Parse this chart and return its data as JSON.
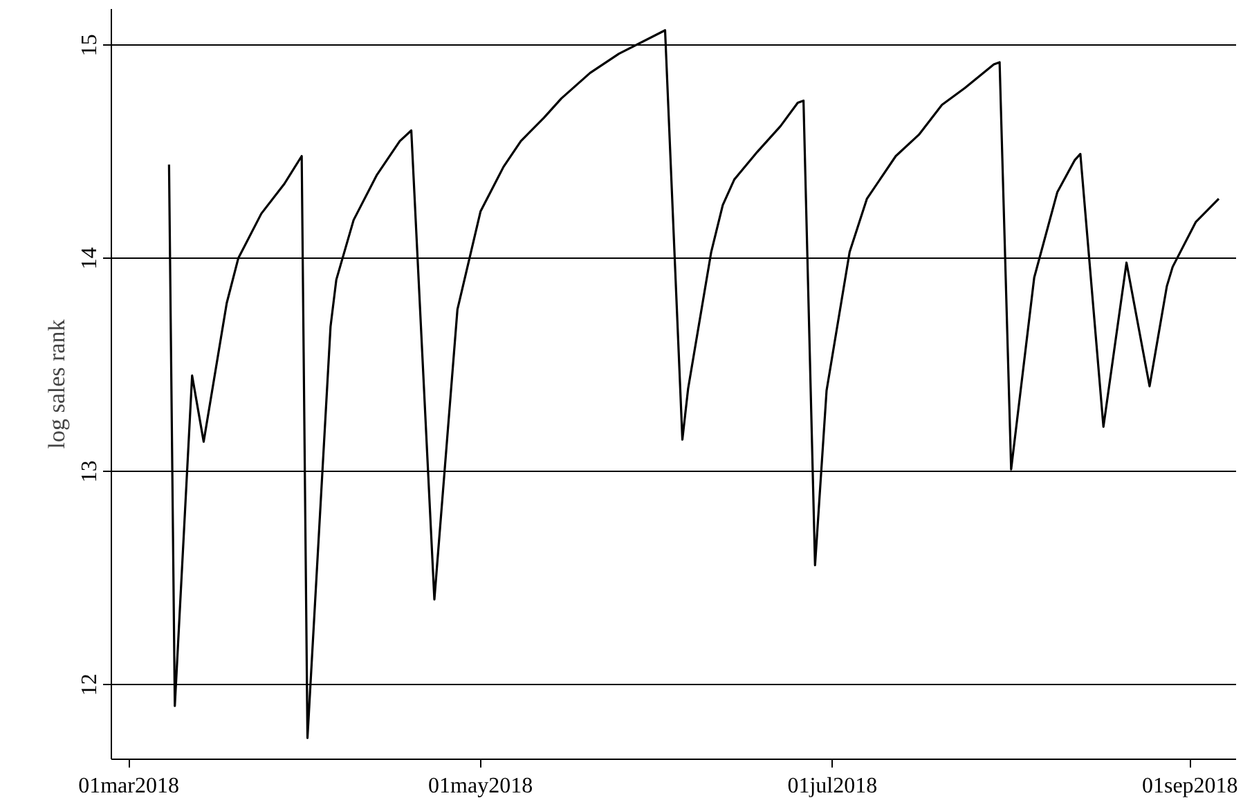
{
  "chart_data": {
    "type": "line",
    "ylabel": "log sales rank",
    "x": [
      "2018-03-08",
      "2018-03-09",
      "2018-03-12",
      "2018-03-14",
      "2018-03-18",
      "2018-03-20",
      "2018-03-24",
      "2018-03-28",
      "2018-03-31",
      "2018-04-01",
      "2018-04-05",
      "2018-04-06",
      "2018-04-09",
      "2018-04-13",
      "2018-04-17",
      "2018-04-19",
      "2018-04-23",
      "2018-04-27",
      "2018-05-01",
      "2018-05-05",
      "2018-05-08",
      "2018-05-12",
      "2018-05-15",
      "2018-05-20",
      "2018-05-25",
      "2018-06-02",
      "2018-06-05",
      "2018-06-06",
      "2018-06-10",
      "2018-06-12",
      "2018-06-14",
      "2018-06-18",
      "2018-06-22",
      "2018-06-25",
      "2018-06-26",
      "2018-06-28",
      "2018-06-30",
      "2018-07-04",
      "2018-07-07",
      "2018-07-12",
      "2018-07-16",
      "2018-07-20",
      "2018-07-24",
      "2018-07-29",
      "2018-07-30",
      "2018-08-01",
      "2018-08-05",
      "2018-08-09",
      "2018-08-12",
      "2018-08-13",
      "2018-08-17",
      "2018-08-21",
      "2018-08-25",
      "2018-08-28",
      "2018-08-29",
      "2018-09-02",
      "2018-09-06"
    ],
    "series": [
      {
        "color": "#000000",
        "values": [
          14.44,
          11.9,
          13.45,
          13.14,
          13.79,
          14.0,
          14.21,
          14.35,
          14.48,
          11.75,
          13.68,
          13.9,
          14.18,
          14.39,
          14.55,
          14.6,
          12.4,
          13.76,
          14.22,
          14.43,
          14.55,
          14.66,
          14.75,
          14.87,
          14.96,
          15.07,
          13.15,
          13.39,
          14.03,
          14.25,
          14.37,
          14.5,
          14.62,
          14.73,
          14.74,
          12.56,
          13.38,
          14.03,
          14.28,
          14.48,
          14.58,
          14.72,
          14.8,
          14.91,
          14.92,
          13.01,
          13.91,
          14.31,
          14.46,
          14.49,
          13.21,
          13.98,
          13.4,
          13.87,
          13.96,
          14.17,
          14.28
        ]
      }
    ],
    "xlim": [
      "2018-02-26",
      "2018-09-09"
    ],
    "xticks": [
      {
        "value": "2018-03-01",
        "label": "01mar2018"
      },
      {
        "value": "2018-05-01",
        "label": "01may2018"
      },
      {
        "value": "2018-07-01",
        "label": "01jul2018"
      },
      {
        "value": "2018-09-01",
        "label": "01sep2018"
      }
    ],
    "ylim": [
      11.65,
      15.17
    ],
    "yticks": [
      12,
      13,
      14,
      15
    ],
    "grid": "y",
    "line_style": "solid"
  }
}
